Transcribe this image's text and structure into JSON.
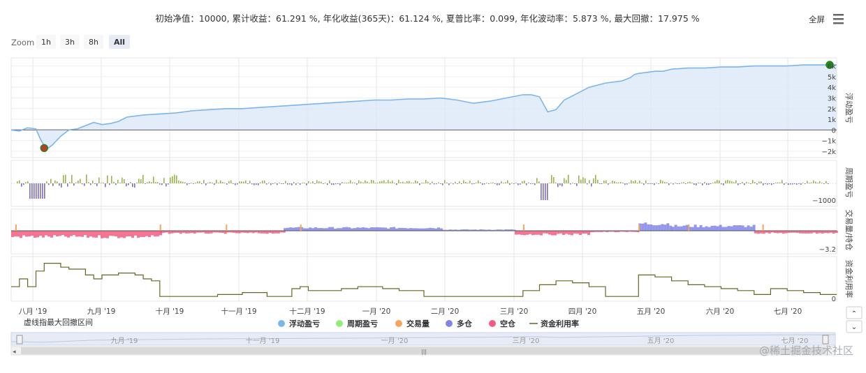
{
  "summary": "初始净值：10000, 累计收益：61.291 %, 年化收益(365天)：61.124 %, 夏普比率：0.099, 年化波动率：5.873 %, 最大回撤：17.975 %",
  "toolbar": {
    "fullscreen_label": "全屏",
    "zoom_label": "Zoom",
    "zoom_buttons": [
      "1h",
      "3h",
      "8h",
      "All"
    ],
    "zoom_selected": "All"
  },
  "colors": {
    "equity": "#7cb5ec",
    "equity_fill": "#dce9f8",
    "period_pl": "#99b34d",
    "period_pl_negative": "#7d6fb8",
    "volume": "#f7a35c",
    "long": "#8085e9",
    "short": "#f15c80",
    "utilization": "#666622",
    "marker": "#1e8b1e",
    "marker_low": "#c0392b"
  },
  "note": "虚线指最大回撤区间",
  "watermark": "@稀土掘金技术社区",
  "chart_data": {
    "type": "line",
    "x_ticks": [
      "八月 '19",
      "九月 '19",
      "十月 '19",
      "十一月 '19",
      "十二月 '19",
      "一月 '20",
      "二月 '20",
      "三月 '20",
      "四月 '20",
      "五月 '20",
      "六月 '20",
      "七月 '20"
    ],
    "navigator_ticks": [
      "九月 '19",
      "十一月 '19",
      "一月 '20",
      "三月 '20",
      "五月 '20",
      "七月 '20"
    ],
    "legend": [
      "浮动盈亏",
      "周期盈亏",
      "交易量",
      "多仓",
      "空仓",
      "资金利用率"
    ],
    "panels": [
      {
        "ylabel": "浮动盈亏",
        "y_ticks": [
          "6k",
          "5k",
          "4k",
          "3k",
          "2k",
          "1k",
          "0",
          "−1k",
          "−2k"
        ],
        "ylim": [
          -2200,
          6300
        ],
        "series": [
          {
            "name": "浮动盈亏",
            "x": [
              0,
              0.01,
              0.02,
              0.03,
              0.035,
              0.04,
              0.045,
              0.05,
              0.06,
              0.07,
              0.08,
              0.09,
              0.1,
              0.11,
              0.12,
              0.13,
              0.14,
              0.16,
              0.18,
              0.2,
              0.22,
              0.24,
              0.26,
              0.28,
              0.3,
              0.32,
              0.34,
              0.36,
              0.38,
              0.4,
              0.42,
              0.44,
              0.46,
              0.48,
              0.5,
              0.52,
              0.54,
              0.56,
              0.58,
              0.6,
              0.62,
              0.63,
              0.64,
              0.65,
              0.66,
              0.67,
              0.68,
              0.69,
              0.7,
              0.72,
              0.74,
              0.75,
              0.755,
              0.76,
              0.77,
              0.78,
              0.79,
              0.8,
              0.82,
              0.84,
              0.86,
              0.88,
              0.9,
              0.92,
              0.94,
              0.96,
              0.98,
              1
            ],
            "y": [
              0,
              -100,
              200,
              100,
              -800,
              -1500,
              -1700,
              -1400,
              -600,
              0,
              100,
              400,
              700,
              500,
              600,
              800,
              1200,
              1400,
              1500,
              1600,
              1800,
              1900,
              2000,
              2000,
              2100,
              2200,
              2300,
              2400,
              2500,
              2600,
              2700,
              2800,
              2800,
              2900,
              2900,
              3000,
              2800,
              2500,
              2700,
              3000,
              3300,
              3300,
              3100,
              1700,
              1900,
              2800,
              3200,
              3600,
              4000,
              4400,
              4600,
              4900,
              5200,
              5300,
              5400,
              5500,
              5500,
              5700,
              5800,
              5800,
              5900,
              5900,
              6000,
              6000,
              6000,
              6100,
              6100,
              6100
            ]
          }
        ],
        "markers": [
          {
            "label": "max",
            "x": 1,
            "y": 6100
          },
          {
            "label": "min",
            "x": 0.04,
            "y": -1700
          }
        ]
      },
      {
        "ylabel": "周期盈亏",
        "y_ticks": [
          "−1000"
        ]
      },
      {
        "ylabel": "交易量/持仓",
        "y_ticks": [
          "−3.2"
        ]
      },
      {
        "ylabel": "资金利用率",
        "y_ticks": [
          "0"
        ]
      }
    ]
  }
}
